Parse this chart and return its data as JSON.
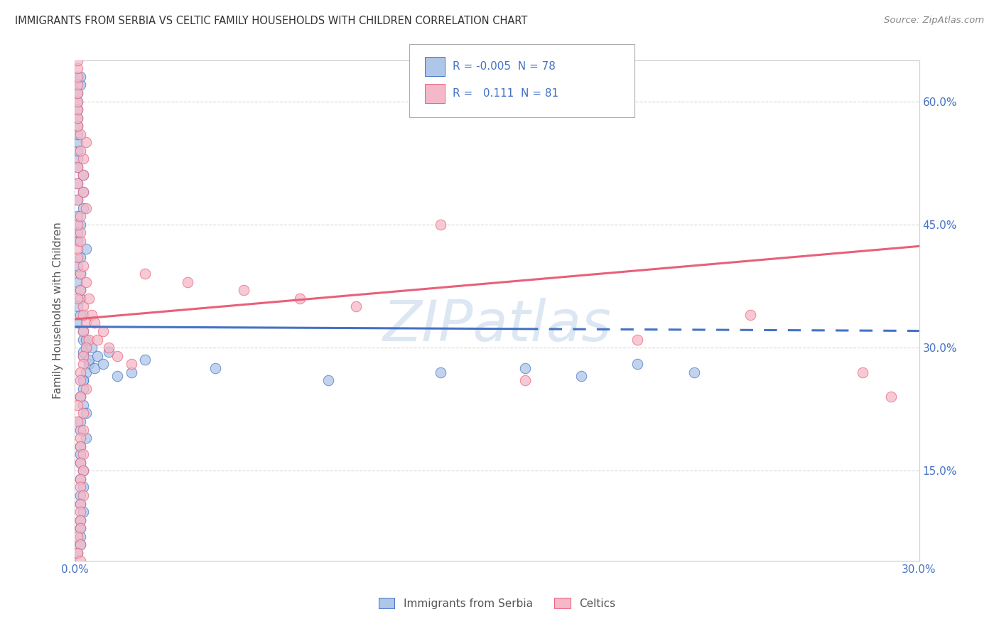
{
  "title": "IMMIGRANTS FROM SERBIA VS CELTIC FAMILY HOUSEHOLDS WITH CHILDREN CORRELATION CHART",
  "source": "Source: ZipAtlas.com",
  "ylabel": "Family Households with Children",
  "legend_entry1": "Immigrants from Serbia",
  "legend_entry2": "Celtics",
  "r1": "-0.005",
  "n1": "78",
  "r2": "0.111",
  "n2": "81",
  "xmin": 0.0,
  "xmax": 0.3,
  "ymin": 0.04,
  "ymax": 0.65,
  "yticks": [
    0.15,
    0.3,
    0.45,
    0.6
  ],
  "ytick_labels": [
    "15.0%",
    "30.0%",
    "45.0%",
    "60.0%"
  ],
  "xticks": [
    0.0,
    0.3
  ],
  "xtick_labels": [
    "0.0%",
    "30.0%"
  ],
  "color_blue": "#aec6e8",
  "color_pink": "#f5b8c8",
  "line_blue": "#4472c4",
  "line_pink": "#e8607a",
  "watermark_color": "#c5d8ec",
  "axis_color": "#4472c4",
  "grid_color": "#d8d8d8",
  "serbia_x": [
    0.002,
    0.003,
    0.001,
    0.004,
    0.002,
    0.003,
    0.001,
    0.005,
    0.002,
    0.003,
    0.001,
    0.004,
    0.002,
    0.003,
    0.001,
    0.002,
    0.003,
    0.004,
    0.001,
    0.002,
    0.003,
    0.001,
    0.002,
    0.003,
    0.004,
    0.001,
    0.002,
    0.003,
    0.001,
    0.002,
    0.003,
    0.004,
    0.001,
    0.002,
    0.003,
    0.001,
    0.002,
    0.001,
    0.002,
    0.003,
    0.001,
    0.002,
    0.003,
    0.001,
    0.002,
    0.001,
    0.002,
    0.003,
    0.001,
    0.002,
    0.001,
    0.002,
    0.001,
    0.002,
    0.001,
    0.002,
    0.001,
    0.002,
    0.001,
    0.002,
    0.003,
    0.004,
    0.005,
    0.006,
    0.007,
    0.008,
    0.01,
    0.012,
    0.015,
    0.02,
    0.025,
    0.05,
    0.09,
    0.13,
    0.16,
    0.18,
    0.2,
    0.22
  ],
  "serbia_y": [
    0.34,
    0.32,
    0.38,
    0.3,
    0.36,
    0.29,
    0.35,
    0.28,
    0.37,
    0.31,
    0.33,
    0.27,
    0.39,
    0.26,
    0.4,
    0.41,
    0.25,
    0.42,
    0.43,
    0.24,
    0.26,
    0.44,
    0.45,
    0.23,
    0.22,
    0.46,
    0.21,
    0.47,
    0.48,
    0.2,
    0.49,
    0.19,
    0.5,
    0.18,
    0.51,
    0.52,
    0.17,
    0.53,
    0.16,
    0.15,
    0.54,
    0.14,
    0.13,
    0.55,
    0.12,
    0.56,
    0.11,
    0.1,
    0.57,
    0.09,
    0.58,
    0.08,
    0.59,
    0.07,
    0.6,
    0.06,
    0.61,
    0.62,
    0.05,
    0.63,
    0.295,
    0.31,
    0.285,
    0.3,
    0.275,
    0.29,
    0.28,
    0.295,
    0.265,
    0.27,
    0.285,
    0.275,
    0.26,
    0.27,
    0.275,
    0.265,
    0.28,
    0.27
  ],
  "celtics_x": [
    0.002,
    0.003,
    0.001,
    0.004,
    0.002,
    0.003,
    0.001,
    0.005,
    0.002,
    0.003,
    0.001,
    0.004,
    0.002,
    0.003,
    0.001,
    0.002,
    0.003,
    0.004,
    0.001,
    0.002,
    0.003,
    0.001,
    0.002,
    0.003,
    0.004,
    0.001,
    0.002,
    0.003,
    0.001,
    0.002,
    0.003,
    0.004,
    0.001,
    0.002,
    0.003,
    0.001,
    0.002,
    0.001,
    0.002,
    0.003,
    0.001,
    0.002,
    0.003,
    0.001,
    0.002,
    0.001,
    0.002,
    0.003,
    0.001,
    0.002,
    0.001,
    0.002,
    0.001,
    0.002,
    0.001,
    0.002,
    0.001,
    0.002,
    0.001,
    0.002,
    0.003,
    0.004,
    0.005,
    0.006,
    0.007,
    0.008,
    0.01,
    0.012,
    0.015,
    0.02,
    0.025,
    0.04,
    0.06,
    0.08,
    0.1,
    0.13,
    0.16,
    0.2,
    0.24,
    0.28,
    0.29
  ],
  "celtics_y": [
    0.37,
    0.35,
    0.41,
    0.33,
    0.39,
    0.32,
    0.42,
    0.31,
    0.43,
    0.34,
    0.36,
    0.3,
    0.44,
    0.29,
    0.45,
    0.46,
    0.28,
    0.47,
    0.48,
    0.27,
    0.49,
    0.5,
    0.26,
    0.51,
    0.25,
    0.52,
    0.24,
    0.53,
    0.23,
    0.54,
    0.22,
    0.55,
    0.21,
    0.56,
    0.2,
    0.57,
    0.19,
    0.58,
    0.18,
    0.17,
    0.59,
    0.16,
    0.15,
    0.6,
    0.14,
    0.61,
    0.13,
    0.12,
    0.62,
    0.11,
    0.63,
    0.1,
    0.64,
    0.09,
    0.65,
    0.08,
    0.07,
    0.06,
    0.05,
    0.04,
    0.4,
    0.38,
    0.36,
    0.34,
    0.33,
    0.31,
    0.32,
    0.3,
    0.29,
    0.28,
    0.39,
    0.38,
    0.37,
    0.36,
    0.35,
    0.45,
    0.26,
    0.31,
    0.34,
    0.27,
    0.24
  ]
}
